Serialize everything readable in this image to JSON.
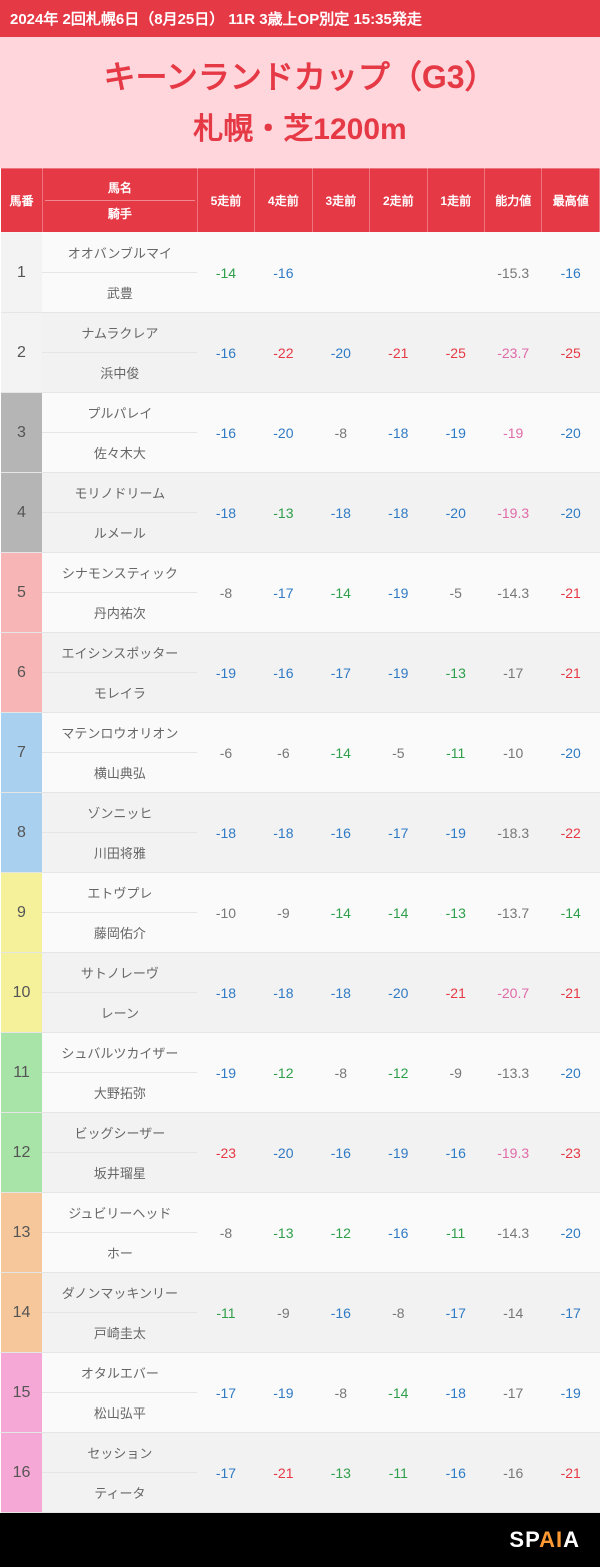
{
  "header": {
    "top_bar": "2024年 2回札幌6日（8月25日） 11R 3歳上OP別定 15:35発走",
    "title_main": "キーンランドカップ（G3）",
    "title_sub": "札幌・芝1200m"
  },
  "columns": {
    "num": "馬番",
    "horse": "馬名",
    "jockey": "騎手",
    "r5": "5走前",
    "r4": "4走前",
    "r3": "3走前",
    "r2": "2走前",
    "r1": "1走前",
    "ability": "能力値",
    "max": "最高値"
  },
  "colors": {
    "blue": "#2f7ac4",
    "red": "#e63946",
    "green": "#2e9e4a",
    "pink": "#e06aa8",
    "gray": "#777777"
  },
  "num_bg": {
    "white": "#f3f3f3",
    "gray": "#b5b5b5",
    "pink": "#f8b5b5",
    "blue": "#aad0f0",
    "yellow": "#f5f09a",
    "green": "#a8e4a8",
    "orange": "#f5c79a",
    "magenta": "#f5a8d5"
  },
  "rows": [
    {
      "num": 1,
      "num_bg": "white",
      "horse": "オオバンブルマイ",
      "jockey": "武豊",
      "r5": {
        "v": "-14",
        "c": "green"
      },
      "r4": {
        "v": "-16",
        "c": "blue"
      },
      "r3": {
        "v": "",
        "c": ""
      },
      "r2": {
        "v": "",
        "c": ""
      },
      "r1": {
        "v": "",
        "c": ""
      },
      "ability": {
        "v": "-15.3",
        "c": "gray"
      },
      "max": {
        "v": "-16",
        "c": "blue"
      }
    },
    {
      "num": 2,
      "num_bg": "white",
      "horse": "ナムラクレア",
      "jockey": "浜中俊",
      "r5": {
        "v": "-16",
        "c": "blue"
      },
      "r4": {
        "v": "-22",
        "c": "red"
      },
      "r3": {
        "v": "-20",
        "c": "blue"
      },
      "r2": {
        "v": "-21",
        "c": "red"
      },
      "r1": {
        "v": "-25",
        "c": "red"
      },
      "ability": {
        "v": "-23.7",
        "c": "pink"
      },
      "max": {
        "v": "-25",
        "c": "red"
      }
    },
    {
      "num": 3,
      "num_bg": "gray",
      "horse": "プルパレイ",
      "jockey": "佐々木大",
      "r5": {
        "v": "-16",
        "c": "blue"
      },
      "r4": {
        "v": "-20",
        "c": "blue"
      },
      "r3": {
        "v": "-8",
        "c": "gray"
      },
      "r2": {
        "v": "-18",
        "c": "blue"
      },
      "r1": {
        "v": "-19",
        "c": "blue"
      },
      "ability": {
        "v": "-19",
        "c": "pink"
      },
      "max": {
        "v": "-20",
        "c": "blue"
      }
    },
    {
      "num": 4,
      "num_bg": "gray",
      "horse": "モリノドリーム",
      "jockey": "ルメール",
      "r5": {
        "v": "-18",
        "c": "blue"
      },
      "r4": {
        "v": "-13",
        "c": "green"
      },
      "r3": {
        "v": "-18",
        "c": "blue"
      },
      "r2": {
        "v": "-18",
        "c": "blue"
      },
      "r1": {
        "v": "-20",
        "c": "blue"
      },
      "ability": {
        "v": "-19.3",
        "c": "pink"
      },
      "max": {
        "v": "-20",
        "c": "blue"
      }
    },
    {
      "num": 5,
      "num_bg": "pink",
      "horse": "シナモンスティック",
      "jockey": "丹内祐次",
      "r5": {
        "v": "-8",
        "c": "gray"
      },
      "r4": {
        "v": "-17",
        "c": "blue"
      },
      "r3": {
        "v": "-14",
        "c": "green"
      },
      "r2": {
        "v": "-19",
        "c": "blue"
      },
      "r1": {
        "v": "-5",
        "c": "gray"
      },
      "ability": {
        "v": "-14.3",
        "c": "gray"
      },
      "max": {
        "v": "-21",
        "c": "red"
      }
    },
    {
      "num": 6,
      "num_bg": "pink",
      "horse": "エイシンスポッター",
      "jockey": "モレイラ",
      "r5": {
        "v": "-19",
        "c": "blue"
      },
      "r4": {
        "v": "-16",
        "c": "blue"
      },
      "r3": {
        "v": "-17",
        "c": "blue"
      },
      "r2": {
        "v": "-19",
        "c": "blue"
      },
      "r1": {
        "v": "-13",
        "c": "green"
      },
      "ability": {
        "v": "-17",
        "c": "gray"
      },
      "max": {
        "v": "-21",
        "c": "red"
      }
    },
    {
      "num": 7,
      "num_bg": "blue",
      "horse": "マテンロウオリオン",
      "jockey": "横山典弘",
      "r5": {
        "v": "-6",
        "c": "gray"
      },
      "r4": {
        "v": "-6",
        "c": "gray"
      },
      "r3": {
        "v": "-14",
        "c": "green"
      },
      "r2": {
        "v": "-5",
        "c": "gray"
      },
      "r1": {
        "v": "-11",
        "c": "green"
      },
      "ability": {
        "v": "-10",
        "c": "gray"
      },
      "max": {
        "v": "-20",
        "c": "blue"
      }
    },
    {
      "num": 8,
      "num_bg": "blue",
      "horse": "ゾンニッヒ",
      "jockey": "川田将雅",
      "r5": {
        "v": "-18",
        "c": "blue"
      },
      "r4": {
        "v": "-18",
        "c": "blue"
      },
      "r3": {
        "v": "-16",
        "c": "blue"
      },
      "r2": {
        "v": "-17",
        "c": "blue"
      },
      "r1": {
        "v": "-19",
        "c": "blue"
      },
      "ability": {
        "v": "-18.3",
        "c": "gray"
      },
      "max": {
        "v": "-22",
        "c": "red"
      }
    },
    {
      "num": 9,
      "num_bg": "yellow",
      "horse": "エトヴプレ",
      "jockey": "藤岡佑介",
      "r5": {
        "v": "-10",
        "c": "gray"
      },
      "r4": {
        "v": "-9",
        "c": "gray"
      },
      "r3": {
        "v": "-14",
        "c": "green"
      },
      "r2": {
        "v": "-14",
        "c": "green"
      },
      "r1": {
        "v": "-13",
        "c": "green"
      },
      "ability": {
        "v": "-13.7",
        "c": "gray"
      },
      "max": {
        "v": "-14",
        "c": "green"
      }
    },
    {
      "num": 10,
      "num_bg": "yellow",
      "horse": "サトノレーヴ",
      "jockey": "レーン",
      "r5": {
        "v": "-18",
        "c": "blue"
      },
      "r4": {
        "v": "-18",
        "c": "blue"
      },
      "r3": {
        "v": "-18",
        "c": "blue"
      },
      "r2": {
        "v": "-20",
        "c": "blue"
      },
      "r1": {
        "v": "-21",
        "c": "red"
      },
      "ability": {
        "v": "-20.7",
        "c": "pink"
      },
      "max": {
        "v": "-21",
        "c": "red"
      }
    },
    {
      "num": 11,
      "num_bg": "green",
      "horse": "シュバルツカイザー",
      "jockey": "大野拓弥",
      "r5": {
        "v": "-19",
        "c": "blue"
      },
      "r4": {
        "v": "-12",
        "c": "green"
      },
      "r3": {
        "v": "-8",
        "c": "gray"
      },
      "r2": {
        "v": "-12",
        "c": "green"
      },
      "r1": {
        "v": "-9",
        "c": "gray"
      },
      "ability": {
        "v": "-13.3",
        "c": "gray"
      },
      "max": {
        "v": "-20",
        "c": "blue"
      }
    },
    {
      "num": 12,
      "num_bg": "green",
      "horse": "ビッグシーザー",
      "jockey": "坂井瑠星",
      "r5": {
        "v": "-23",
        "c": "red"
      },
      "r4": {
        "v": "-20",
        "c": "blue"
      },
      "r3": {
        "v": "-16",
        "c": "blue"
      },
      "r2": {
        "v": "-19",
        "c": "blue"
      },
      "r1": {
        "v": "-16",
        "c": "blue"
      },
      "ability": {
        "v": "-19.3",
        "c": "pink"
      },
      "max": {
        "v": "-23",
        "c": "red"
      }
    },
    {
      "num": 13,
      "num_bg": "orange",
      "horse": "ジュビリーヘッド",
      "jockey": "ホー",
      "r5": {
        "v": "-8",
        "c": "gray"
      },
      "r4": {
        "v": "-13",
        "c": "green"
      },
      "r3": {
        "v": "-12",
        "c": "green"
      },
      "r2": {
        "v": "-16",
        "c": "blue"
      },
      "r1": {
        "v": "-11",
        "c": "green"
      },
      "ability": {
        "v": "-14.3",
        "c": "gray"
      },
      "max": {
        "v": "-20",
        "c": "blue"
      }
    },
    {
      "num": 14,
      "num_bg": "orange",
      "horse": "ダノンマッキンリー",
      "jockey": "戸崎圭太",
      "r5": {
        "v": "-11",
        "c": "green"
      },
      "r4": {
        "v": "-9",
        "c": "gray"
      },
      "r3": {
        "v": "-16",
        "c": "blue"
      },
      "r2": {
        "v": "-8",
        "c": "gray"
      },
      "r1": {
        "v": "-17",
        "c": "blue"
      },
      "ability": {
        "v": "-14",
        "c": "gray"
      },
      "max": {
        "v": "-17",
        "c": "blue"
      }
    },
    {
      "num": 15,
      "num_bg": "magenta",
      "horse": "オタルエバー",
      "jockey": "松山弘平",
      "r5": {
        "v": "-17",
        "c": "blue"
      },
      "r4": {
        "v": "-19",
        "c": "blue"
      },
      "r3": {
        "v": "-8",
        "c": "gray"
      },
      "r2": {
        "v": "-14",
        "c": "green"
      },
      "r1": {
        "v": "-18",
        "c": "blue"
      },
      "ability": {
        "v": "-17",
        "c": "gray"
      },
      "max": {
        "v": "-19",
        "c": "blue"
      }
    },
    {
      "num": 16,
      "num_bg": "magenta",
      "horse": "セッション",
      "jockey": "ティータ",
      "r5": {
        "v": "-17",
        "c": "blue"
      },
      "r4": {
        "v": "-21",
        "c": "red"
      },
      "r3": {
        "v": "-13",
        "c": "green"
      },
      "r2": {
        "v": "-11",
        "c": "green"
      },
      "r1": {
        "v": "-16",
        "c": "blue"
      },
      "ability": {
        "v": "-16",
        "c": "gray"
      },
      "max": {
        "v": "-21",
        "c": "red"
      }
    }
  ],
  "footer": {
    "brand_pre": "SP",
    "brand_accent": "AI",
    "brand_post": "A"
  }
}
